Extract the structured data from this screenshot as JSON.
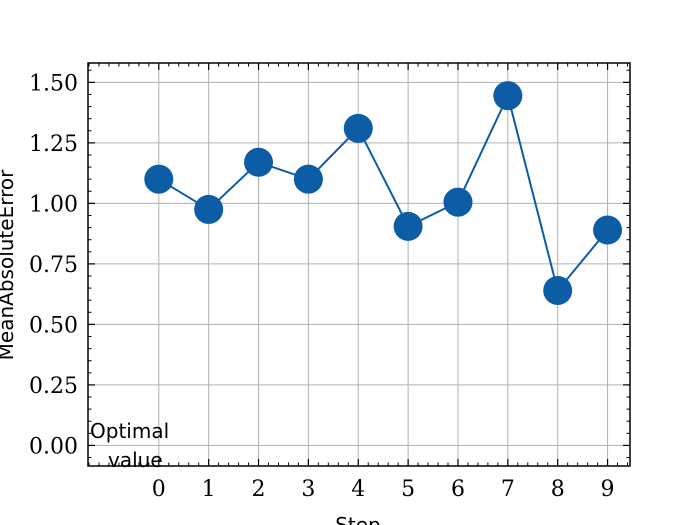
{
  "chart_data": {
    "type": "line",
    "title": "",
    "xlabel": "Step",
    "ylabel": "MeanAbsoluteError",
    "x": [
      0,
      1,
      2,
      3,
      4,
      5,
      6,
      7,
      8,
      9
    ],
    "series": [
      {
        "values": [
          1.1,
          0.975,
          1.17,
          1.1,
          1.31,
          0.905,
          1.005,
          1.445,
          0.64,
          0.89
        ]
      }
    ],
    "xticks": [
      "0",
      "1",
      "2",
      "3",
      "4",
      "5",
      "6",
      "7",
      "8",
      "9"
    ],
    "yticks": [
      "0.00",
      "0.25",
      "0.50",
      "0.75",
      "1.00",
      "1.25",
      "1.50"
    ],
    "xlim": [
      -1.42,
      9.45
    ],
    "ylim": [
      -0.085,
      1.58
    ],
    "grid": true,
    "annotation": [
      "Optimal",
      "value"
    ],
    "colors": {
      "line": "#0c5da5",
      "grid": "#b0b0b0"
    }
  }
}
